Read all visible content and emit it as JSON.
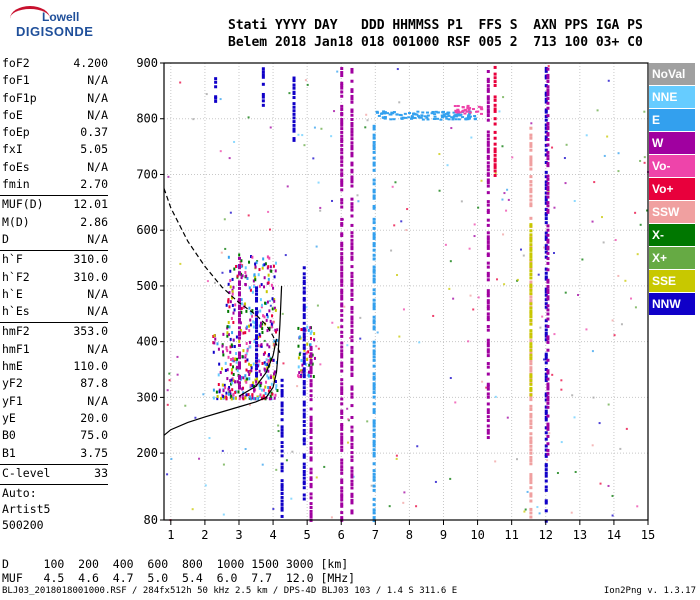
{
  "logo": {
    "line1": "Lowell",
    "line2": "DIGISONDE"
  },
  "header": {
    "row1": "Stati YYYY DAY   DDD HHMMSS P1  FFS S  AXN PPS IGA PS",
    "row2": "Belem 2018 Jan18 018 001000 RSF 005 2  713 100 03+ C0"
  },
  "params": {
    "group1": [
      {
        "label": "foF2",
        "value": "4.200"
      },
      {
        "label": "foF1",
        "value": "N/A"
      },
      {
        "label": "foF1p",
        "value": "N/A"
      },
      {
        "label": "foE",
        "value": "N/A"
      },
      {
        "label": "foEp",
        "value": "0.37"
      },
      {
        "label": "fxI",
        "value": "5.05"
      },
      {
        "label": "foEs",
        "value": "N/A"
      },
      {
        "label": "fmin",
        "value": "2.70"
      }
    ],
    "group2": [
      {
        "label": "MUF(D)",
        "value": "12.01"
      },
      {
        "label": "M(D)",
        "value": "2.86"
      },
      {
        "label": "D",
        "value": "N/A"
      }
    ],
    "group3": [
      {
        "label": "h`F",
        "value": "310.0"
      },
      {
        "label": "h`F2",
        "value": "310.0"
      },
      {
        "label": "h`E",
        "value": "N/A"
      },
      {
        "label": "h`Es",
        "value": "N/A"
      }
    ],
    "group4": [
      {
        "label": "hmF2",
        "value": "353.0"
      },
      {
        "label": "hmF1",
        "value": "N/A"
      },
      {
        "label": "hmE",
        "value": "110.0"
      },
      {
        "label": "yF2",
        "value": "87.8"
      },
      {
        "label": "yF1",
        "value": "N/A"
      },
      {
        "label": "yE",
        "value": "20.0"
      },
      {
        "label": "B0",
        "value": "75.0"
      },
      {
        "label": "B1",
        "value": "3.75"
      }
    ],
    "group5": [
      {
        "label": "C-level",
        "value": "33"
      }
    ],
    "auto": [
      "Auto:",
      "Artist5",
      "500200"
    ]
  },
  "legend": [
    {
      "label": "NoVal",
      "color": "#a0a0a0"
    },
    {
      "label": "NNE",
      "color": "#66ccff"
    },
    {
      "label": "E",
      "color": "#33a0ee"
    },
    {
      "label": "W",
      "color": "#a000a0"
    },
    {
      "label": "Vo-",
      "color": "#ee44aa"
    },
    {
      "label": "Vo+",
      "color": "#e8003c"
    },
    {
      "label": "SSW",
      "color": "#f0a0a0"
    },
    {
      "label": "X-",
      "color": "#007700"
    },
    {
      "label": "X+",
      "color": "#66aa44"
    },
    {
      "label": "SSE",
      "color": "#c8c800"
    },
    {
      "label": "NNW",
      "color": "#1000c8"
    }
  ],
  "bottom": {
    "row1": "D     100  200  400  600  800  1000 1500 3000 [km]",
    "row2": "MUF   4.5  4.6  4.7  5.0  5.4  6.0  7.7  12.0 [MHz]"
  },
  "footer": "BLJ03_2018018001000.RSF / 284fx512h 50 kHz 2.5 km / DPS-4D BLJ03 103 / 1.4 S 311.6 E",
  "version": "Ion2Png v. 1.3.17",
  "chart_data": {
    "type": "scatter",
    "xlim": [
      0.8,
      15
    ],
    "ylim": [
      80,
      900
    ],
    "xticks": [
      "1",
      "2",
      "3",
      "4",
      "5",
      "6",
      "7",
      "8",
      "9",
      "10",
      "11",
      "12",
      "13",
      "14",
      "15"
    ],
    "yticks": [
      "80",
      "200",
      "300",
      "400",
      "500",
      "600",
      "700",
      "800",
      "900"
    ],
    "grid": true,
    "profile_solid": [
      [
        0.8,
        232
      ],
      [
        1.0,
        242
      ],
      [
        1.5,
        255
      ],
      [
        2.0,
        265
      ],
      [
        2.5,
        274
      ],
      [
        3.0,
        283
      ],
      [
        3.5,
        292
      ],
      [
        3.8,
        300
      ],
      [
        4.0,
        318
      ],
      [
        4.1,
        345
      ],
      [
        4.15,
        380
      ],
      [
        4.2,
        430
      ],
      [
        4.25,
        500
      ]
    ],
    "profile_dashed": [
      [
        0.8,
        675
      ],
      [
        1.0,
        640
      ],
      [
        1.5,
        580
      ],
      [
        2.0,
        535
      ],
      [
        2.5,
        498
      ],
      [
        3.0,
        470
      ],
      [
        3.5,
        448
      ],
      [
        3.8,
        430
      ],
      [
        4.0,
        410
      ],
      [
        4.1,
        395
      ],
      [
        4.2,
        380
      ]
    ],
    "trace_solid": [
      [
        3.0,
        302
      ],
      [
        3.5,
        320
      ],
      [
        3.8,
        345
      ],
      [
        4.0,
        375
      ],
      [
        4.1,
        405
      ]
    ],
    "columns": [
      {
        "x": 3.0,
        "y0": 310,
        "y1": 560,
        "color": "#a000a0"
      },
      {
        "x": 3.5,
        "y0": 340,
        "y1": 510,
        "color": "#1000c8"
      },
      {
        "x": 4.25,
        "y0": 80,
        "y1": 340,
        "color": "#1000c8"
      },
      {
        "x": 4.9,
        "y0": 120,
        "y1": 540,
        "color": "#1000c8"
      },
      {
        "x": 5.1,
        "y0": 80,
        "y1": 400,
        "color": "#a000a0"
      },
      {
        "x": 6.0,
        "y0": 80,
        "y1": 900,
        "color": "#a000a0"
      },
      {
        "x": 6.3,
        "y0": 80,
        "y1": 900,
        "color": "#a000a0"
      },
      {
        "x": 6.95,
        "y0": 80,
        "y1": 800,
        "color": "#33a0ee"
      },
      {
        "x": 10.3,
        "y0": 230,
        "y1": 900,
        "color": "#a000a0"
      },
      {
        "x": 10.5,
        "y0": 700,
        "y1": 900,
        "color": "#e8003c"
      },
      {
        "x": 11.55,
        "y0": 80,
        "y1": 800,
        "color": "#f0a0a0"
      },
      {
        "x": 11.55,
        "y0": 300,
        "y1": 620,
        "color": "#c8c800"
      },
      {
        "x": 12.0,
        "y0": 80,
        "y1": 900,
        "color": "#1000c8"
      },
      {
        "x": 12.05,
        "y0": 200,
        "y1": 900,
        "color": "#a000a0"
      },
      {
        "x": 3.7,
        "y0": 820,
        "y1": 900,
        "color": "#1000c8"
      },
      {
        "x": 4.6,
        "y0": 760,
        "y1": 880,
        "color": "#1000c8"
      },
      {
        "x": 2.3,
        "y0": 830,
        "y1": 880,
        "color": "#1000c8"
      }
    ],
    "bands": [
      {
        "x0": 7.0,
        "x1": 9.9,
        "y0": 800,
        "y1": 815,
        "color": "#33a0ee"
      },
      {
        "x0": 9.3,
        "x1": 10.1,
        "y0": 810,
        "y1": 825,
        "color": "#ee44aa"
      }
    ],
    "clusters": [
      {
        "x0": 2.6,
        "x1": 4.1,
        "y0": 300,
        "y1": 560,
        "count": 420
      },
      {
        "x0": 4.7,
        "x1": 5.2,
        "y0": 340,
        "y1": 430,
        "count": 60
      },
      {
        "x0": 2.2,
        "x1": 2.6,
        "y0": 300,
        "y1": 420,
        "count": 40
      }
    ],
    "sparse_count": 260
  }
}
